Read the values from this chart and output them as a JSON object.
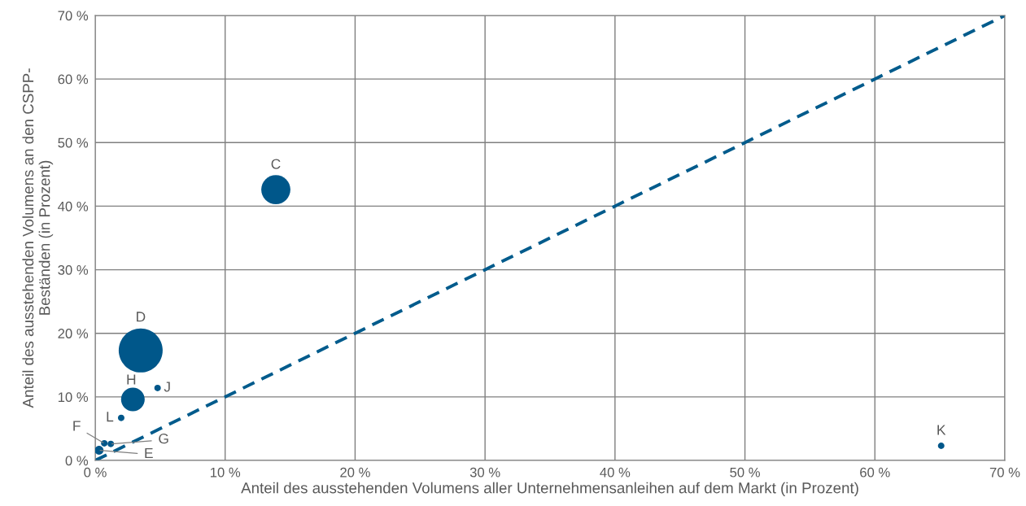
{
  "chart_data": {
    "type": "bubble",
    "xlabel": "Anteil des ausstehenden Volumens aller Unternehmensanleihen auf dem Markt (in Prozent)",
    "ylabel": "Anteil des ausstehenden Volumens an den CSPP-\nBeständen (in Prozent)",
    "series": [
      {
        "marker": "circle",
        "color": "#00578a",
        "x": [
          13.9,
          3.5,
          2.9,
          4.8,
          2.0,
          0.7,
          1.2,
          0.3,
          65.1
        ],
        "values": [
          42.6,
          17.3,
          9.6,
          11.4,
          6.7,
          2.7,
          2.6,
          1.6,
          2.3
        ],
        "sizes": [
          0.44,
          1,
          0.29,
          0.022,
          0.022,
          0.022,
          0.022,
          0.041,
          0.022
        ]
      },
      {
        "type": "line",
        "color": "#005b8c",
        "x": [
          0,
          70
        ],
        "values": [
          0,
          70
        ],
        "line_style": "dashed"
      }
    ],
    "annotations": [
      {
        "text": "C",
        "x": 13.9,
        "y": 42.6
      },
      {
        "text": "D",
        "x": 3.5,
        "y": 17.3
      },
      {
        "text": "H",
        "x": 2.9,
        "y": 9.6
      },
      {
        "text": "J",
        "x": 4.8,
        "y": 11.4
      },
      {
        "text": "L",
        "x": 2.0,
        "y": 6.7
      },
      {
        "text": "F",
        "x": 0.7,
        "y": 2.7
      },
      {
        "text": "G",
        "x": 1.2,
        "y": 2.6
      },
      {
        "text": "E",
        "x": 0.3,
        "y": 1.6
      },
      {
        "text": "K",
        "x": 65.1,
        "y": 2.3
      }
    ],
    "xlim": [
      0,
      70
    ],
    "ylim": [
      0,
      70
    ],
    "xticks": [
      {
        "value": 0,
        "label": "0 %"
      },
      {
        "value": 10,
        "label": "10 %"
      },
      {
        "value": 20,
        "label": "20 %"
      },
      {
        "value": 30,
        "label": "30 %"
      },
      {
        "value": 40,
        "label": "40 %"
      },
      {
        "value": 50,
        "label": "50 %"
      },
      {
        "value": 60,
        "label": "60 %"
      },
      {
        "value": 70,
        "label": "70 %"
      }
    ],
    "yticks": [
      {
        "value": 0,
        "label": "0 %"
      },
      {
        "value": 10,
        "label": "10 %"
      },
      {
        "value": 20,
        "label": "20 %"
      },
      {
        "value": 30,
        "label": "30 %"
      },
      {
        "value": 40,
        "label": "40 %"
      },
      {
        "value": 50,
        "label": "50 %"
      },
      {
        "value": 60,
        "label": "60 %"
      },
      {
        "value": 70,
        "label": "70 %"
      }
    ],
    "grid": true
  }
}
